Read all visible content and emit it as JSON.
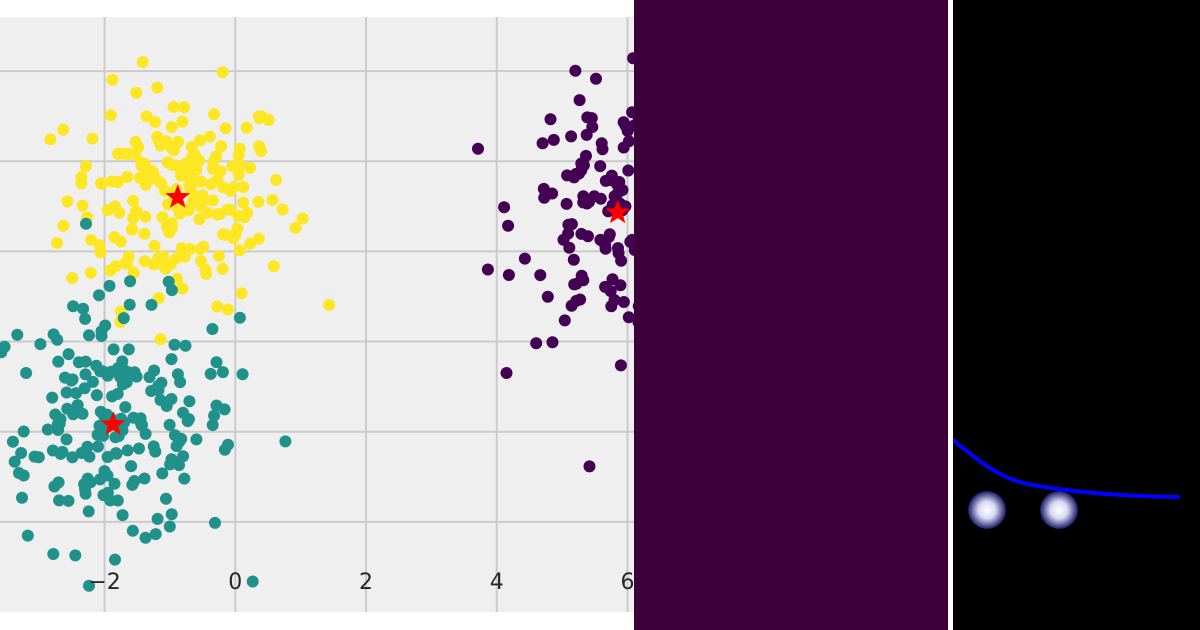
{
  "chart_data": {
    "type": "scatter",
    "xlim": [
      -3.6,
      6.1
    ],
    "ylim": [
      -2.0,
      4.6
    ],
    "x_ticks": [
      -2,
      0,
      2,
      4,
      6
    ],
    "x_tick_labels": [
      "−2",
      "0",
      "2",
      "4",
      "6"
    ],
    "y_ticks": [
      -1,
      0,
      1,
      2,
      3,
      4
    ],
    "y_tick_labels": [],
    "grid": true,
    "background": "#efefef",
    "clusters": [
      {
        "color": "#fde725",
        "center": [
          -0.88,
          2.6
        ],
        "n": 200,
        "spread": [
          0.85,
          0.6
        ]
      },
      {
        "color": "#21918c",
        "center": [
          -1.87,
          0.08
        ],
        "n": 200,
        "spread": [
          0.95,
          0.68
        ]
      },
      {
        "color": "#440154",
        "center": [
          5.85,
          2.43
        ],
        "n": 150,
        "spread": [
          0.75,
          0.7
        ]
      }
    ],
    "centroids": [
      {
        "x": -0.88,
        "y": 2.6,
        "color": "#ff0000"
      },
      {
        "x": -1.87,
        "y": 0.08,
        "color": "#ff0000"
      },
      {
        "x": 5.85,
        "y": 2.43,
        "color": "#ff0000"
      }
    ]
  },
  "purple_panel": {
    "color": "#3e003a"
  },
  "black_panel": {
    "color": "#000000",
    "curve_color": "#0000ff",
    "orb_color": "#d8d8f4"
  }
}
